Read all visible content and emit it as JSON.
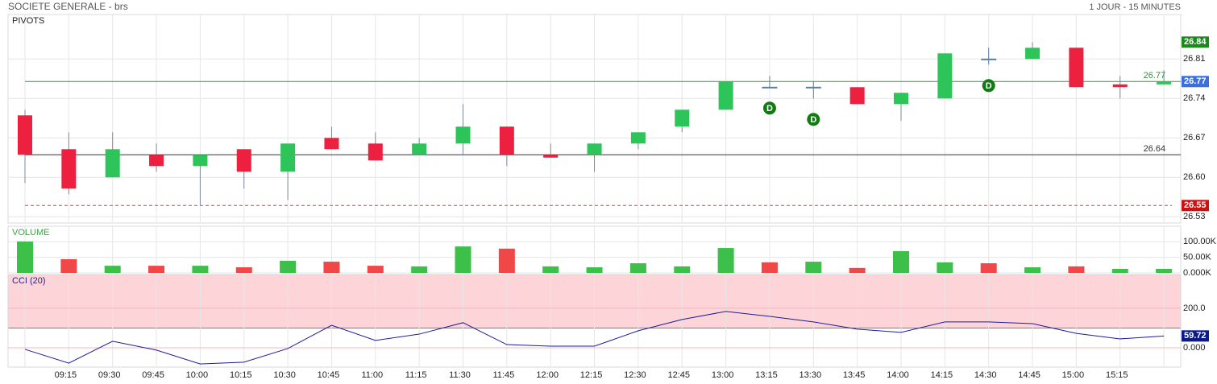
{
  "header": {
    "title": "SOCIETE GENERALE - brs",
    "interval": "1 JOUR - 15 MINUTES"
  },
  "chart_data": [
    {
      "type": "candlestick",
      "title": "PIVOTS",
      "title_color": "#222",
      "x": [
        null,
        "09:15",
        "09:30",
        "09:45",
        "10:00",
        "10:15",
        "10:30",
        "10:45",
        "11:00",
        "11:15",
        "11:30",
        "11:45",
        "12:00",
        "12:15",
        "12:30",
        "12:45",
        "13:00",
        "13:15",
        "13:30",
        "13:45",
        "14:00",
        "14:15",
        "14:30",
        "14:45",
        "15:00",
        "15:15",
        null
      ],
      "open": [
        26.71,
        26.65,
        26.6,
        26.64,
        26.62,
        26.65,
        26.61,
        26.67,
        26.66,
        26.64,
        26.66,
        26.69,
        26.64,
        26.64,
        26.66,
        26.69,
        26.72,
        26.76,
        26.76,
        26.76,
        26.73,
        26.74,
        26.81,
        26.81,
        26.83,
        26.765,
        26.765
      ],
      "high": [
        26.72,
        26.68,
        26.68,
        26.66,
        26.64,
        26.65,
        26.66,
        26.69,
        26.68,
        26.67,
        26.73,
        26.69,
        26.66,
        26.66,
        26.68,
        26.72,
        26.77,
        26.78,
        26.77,
        26.76,
        26.75,
        26.82,
        26.83,
        26.84,
        26.83,
        26.78,
        26.79
      ],
      "low": [
        26.59,
        26.57,
        26.6,
        26.61,
        26.55,
        26.58,
        26.56,
        26.65,
        26.63,
        26.64,
        26.64,
        26.62,
        26.635,
        26.61,
        26.65,
        26.68,
        26.72,
        26.76,
        26.74,
        26.73,
        26.7,
        26.74,
        26.8,
        26.81,
        26.76,
        26.74,
        26.765
      ],
      "close": [
        26.64,
        26.58,
        26.65,
        26.62,
        26.64,
        26.61,
        26.66,
        26.65,
        26.63,
        26.66,
        26.69,
        26.64,
        26.635,
        26.66,
        26.68,
        26.72,
        26.77,
        26.76,
        26.76,
        26.73,
        26.75,
        26.82,
        26.81,
        26.83,
        26.76,
        26.76,
        26.77
      ],
      "up_color": "#2dc55a",
      "down_color": "#ee2040",
      "doji_color": "#5a7f9f",
      "ylim": [
        26.519,
        26.889
      ],
      "yticks": [
        26.53,
        {
          "value": 26.6,
          "label": "26.60"
        },
        26.67,
        26.74,
        26.81
      ],
      "grid": true,
      "levels": [
        {
          "value": 26.77,
          "color": "#3a8f3a",
          "dashed": false,
          "text": true
        },
        {
          "value": 26.64,
          "color": "#333333",
          "dashed": false,
          "text": true
        },
        {
          "value": 26.55,
          "color": "#e03a4a",
          "dashed": true,
          "text": false
        }
      ],
      "tags": [
        {
          "value": 26.84,
          "color": "#1a8a1a"
        },
        {
          "value": 26.77,
          "color": "#3b6fe0"
        },
        {
          "value": 26.55,
          "color": "#cc1111"
        }
      ],
      "markers": [
        {
          "x": "13:15",
          "label": "D"
        },
        {
          "x": "13:30",
          "label": "D"
        },
        {
          "x": "14:30",
          "label": "D"
        }
      ],
      "marker_color": "#127a12"
    },
    {
      "type": "bar",
      "title": "VOLUME",
      "title_color": "#2dae3a",
      "values": [
        101000,
        44000,
        23000,
        23000,
        23000,
        18000,
        39000,
        36000,
        23000,
        21000,
        85000,
        78000,
        21000,
        18000,
        31000,
        21000,
        80000,
        34000,
        36000,
        16000,
        70000,
        34000,
        31000,
        18000,
        21000,
        13000,
        13000
      ],
      "colors": [
        "#3cc04a",
        "#f04848",
        "#3cc04a",
        "#f04848",
        "#3cc04a",
        "#f04848",
        "#3cc04a",
        "#f04848",
        "#f04848",
        "#3cc04a",
        "#3cc04a",
        "#f04848",
        "#3cc04a",
        "#3cc04a",
        "#3cc04a",
        "#3cc04a",
        "#3cc04a",
        "#f04848",
        "#3cc04a",
        "#f04848",
        "#3cc04a",
        "#3cc04a",
        "#f04848",
        "#3cc04a",
        "#f04848",
        "#3cc04a",
        "#3cc04a"
      ],
      "ylim": [
        0,
        150000
      ],
      "yticks": [
        {
          "value": 0,
          "label": "0.000K"
        },
        {
          "value": 50000,
          "label": "50.00K"
        },
        {
          "value": 100000,
          "label": "100.00K"
        }
      ]
    },
    {
      "type": "line",
      "title": "CCI (20)",
      "title_color": "#1c1c9c",
      "values": [
        -8,
        -78,
        33,
        -12,
        -82,
        -73,
        -4,
        114,
        37,
        69,
        127,
        16,
        8,
        8,
        86,
        143,
        184,
        159,
        131,
        94,
        78,
        131,
        131,
        122,
        73,
        45,
        59.72
      ],
      "color": "#1c1c9c",
      "ylim": [
        -98,
        371
      ],
      "yticks": [
        {
          "value": 0,
          "label": "0.000"
        },
        {
          "value": 200,
          "label": "200.0"
        }
      ],
      "band_level": 100,
      "band_color": "#fdd5d8",
      "level_color": "#e05060",
      "tag_color": "#0a1a8a"
    }
  ]
}
